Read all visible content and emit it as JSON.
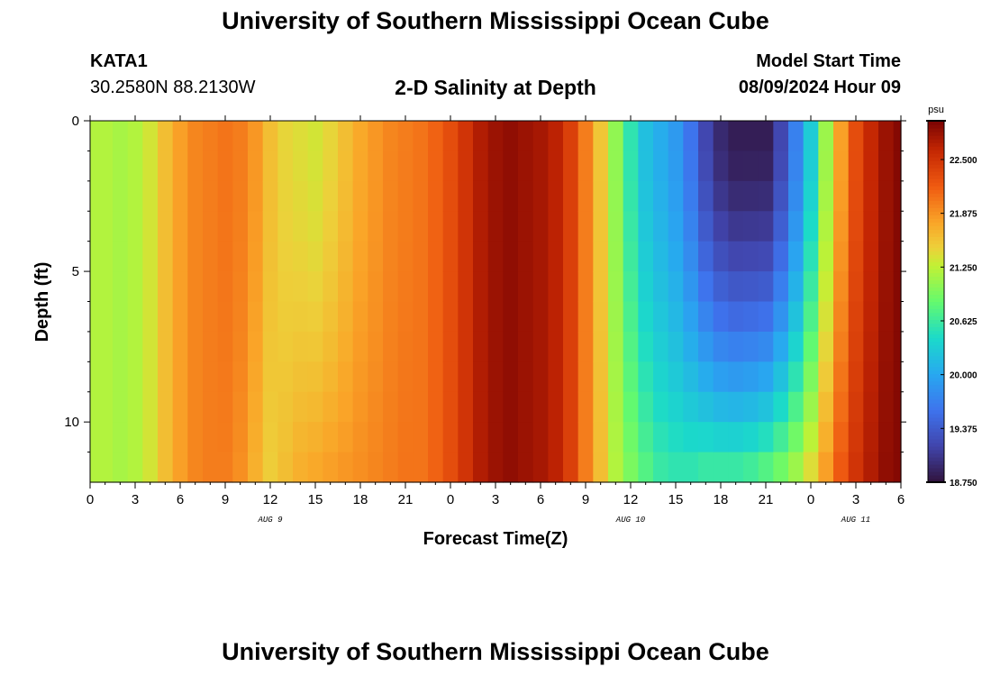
{
  "header": {
    "title": "University of Southern Mississippi Ocean Cube",
    "station": "KATA1",
    "coordinates": "30.2580N  88.2130W",
    "subtitle": "2-D Salinity at Depth",
    "model_start_label": "Model Start Time",
    "model_start_value": "08/09/2024 Hour 09"
  },
  "footer": {
    "title": "University of Southern Mississippi Ocean Cube"
  },
  "chart_data": {
    "type": "heatmap",
    "title": "2-D Salinity at Depth",
    "xlabel": "Forecast Time(Z)",
    "ylabel": "Depth (ft)",
    "x_ticks": [
      "0",
      "3",
      "6",
      "9",
      "12",
      "15",
      "18",
      "21",
      "0",
      "3",
      "6",
      "9",
      "12",
      "15",
      "18",
      "21",
      "0",
      "3",
      "6"
    ],
    "x_range_hours": [
      0,
      54
    ],
    "date_labels": [
      {
        "label": "AUG 9",
        "hour": 12
      },
      {
        "label": "AUG 10",
        "hour": 36
      },
      {
        "label": "AUG 11",
        "hour": 51
      }
    ],
    "y_ticks": [
      0,
      5,
      10
    ],
    "y_range_ft": [
      0,
      12
    ],
    "colorbar": {
      "unit": "psu",
      "ticks": [
        "22.500",
        "21.875",
        "21.250",
        "20.625",
        "20.000",
        "19.375",
        "18.750"
      ],
      "min": 18.75,
      "max": 22.95
    },
    "surface_salinity_by_hour": [
      21.2,
      21.2,
      21.15,
      21.2,
      21.35,
      21.6,
      21.8,
      21.95,
      22.0,
      22.05,
      22.0,
      21.85,
      21.6,
      21.45,
      21.4,
      21.35,
      21.45,
      21.6,
      21.75,
      21.85,
      21.95,
      22.0,
      22.05,
      22.15,
      22.3,
      22.5,
      22.7,
      22.8,
      22.85,
      22.8,
      22.75,
      22.65,
      22.4,
      22.0,
      21.55,
      21.05,
      20.55,
      20.2,
      20.05,
      19.9,
      19.6,
      19.2,
      18.95,
      18.85,
      18.85,
      18.85,
      19.2,
      19.7,
      20.3,
      21.1,
      21.8,
      22.3,
      22.6,
      22.8,
      22.9
    ],
    "bottom_salinity_by_hour": [
      21.2,
      21.2,
      21.15,
      21.2,
      21.35,
      21.6,
      21.8,
      21.95,
      22.0,
      22.0,
      21.9,
      21.7,
      21.5,
      21.6,
      21.7,
      21.75,
      21.8,
      21.85,
      21.9,
      21.95,
      22.0,
      22.05,
      22.05,
      22.15,
      22.3,
      22.5,
      22.7,
      22.8,
      22.85,
      22.8,
      22.75,
      22.65,
      22.4,
      22.0,
      21.6,
      21.2,
      20.95,
      20.75,
      20.6,
      20.55,
      20.55,
      20.6,
      20.6,
      20.6,
      20.65,
      20.75,
      20.9,
      21.1,
      21.4,
      21.8,
      22.2,
      22.5,
      22.7,
      22.85,
      22.9
    ]
  }
}
